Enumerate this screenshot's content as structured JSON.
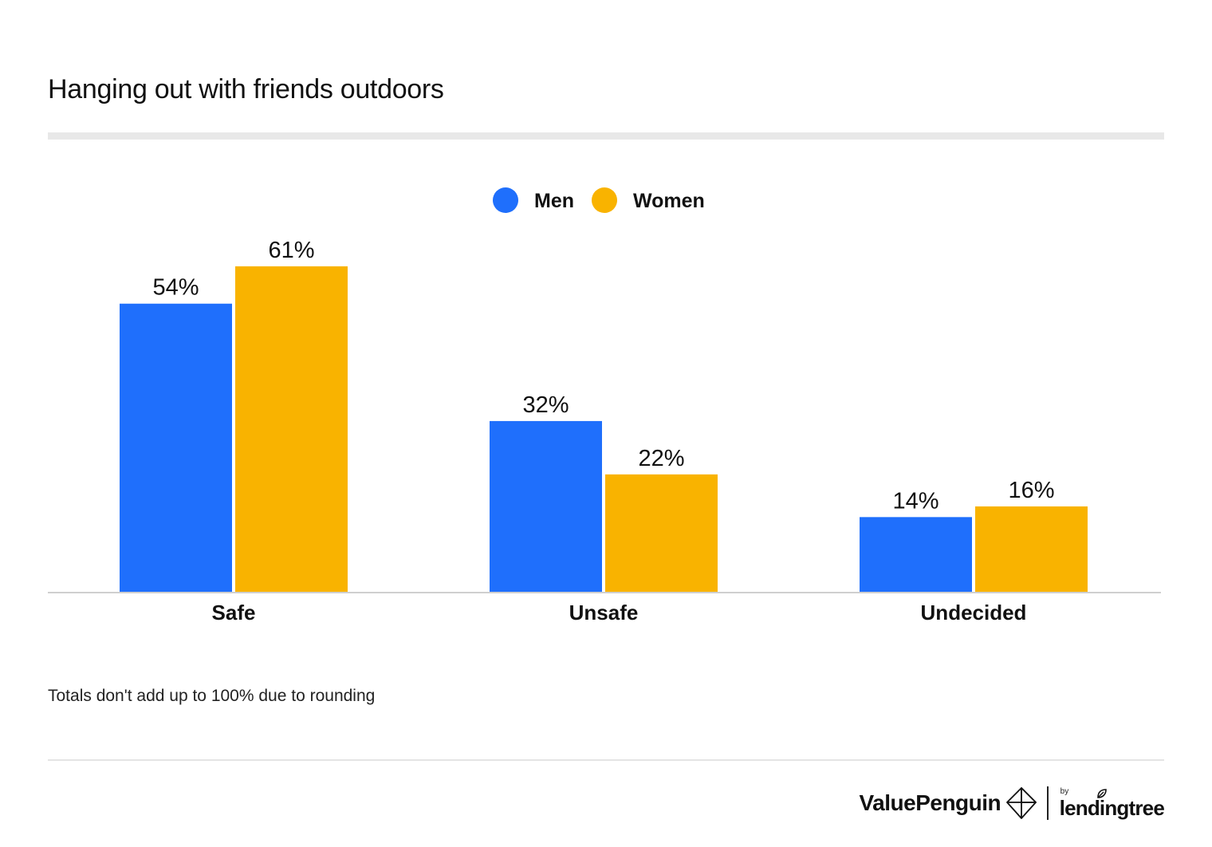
{
  "title": "Hanging out with friends outdoors",
  "note": "Totals don't add up to 100% due to rounding",
  "brand": {
    "valuepenguin": "ValuePenguin",
    "by": "by",
    "lendingtree": "lendingtree"
  },
  "colors": {
    "men": "#1f6ffc",
    "women": "#f9b300",
    "axis": "#cfcfcf"
  },
  "chart_data": {
    "type": "bar",
    "title": "Hanging out with friends outdoors",
    "categories": [
      "Safe",
      "Unsafe",
      "Undecided"
    ],
    "series": [
      {
        "name": "Men",
        "values": [
          54,
          32,
          14
        ],
        "labels": [
          "54%",
          "32%",
          "14%"
        ]
      },
      {
        "name": "Women",
        "values": [
          61,
          22,
          16
        ],
        "labels": [
          "61%",
          "22%",
          "16%"
        ]
      }
    ],
    "ylim": [
      0,
      70
    ],
    "grid": false,
    "legend": "top-center",
    "xlabel": "",
    "ylabel": ""
  }
}
